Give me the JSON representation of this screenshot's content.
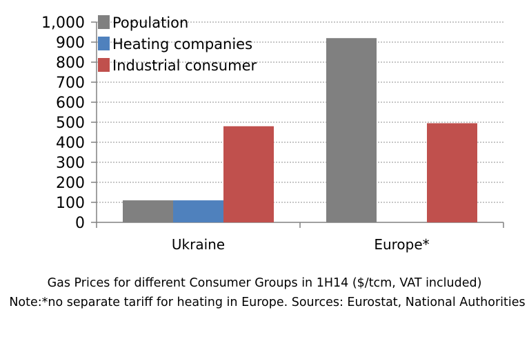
{
  "chart_data": {
    "type": "bar",
    "categories": [
      "Ukraine",
      "Europe*"
    ],
    "series": [
      {
        "name": "Population",
        "values": [
          110,
          920
        ],
        "color": "#808080"
      },
      {
        "name": "Heating companies",
        "values": [
          110,
          null
        ],
        "color": "#4f81bd"
      },
      {
        "name": "Industrial consumer",
        "values": [
          480,
          495
        ],
        "color": "#c0504d"
      }
    ],
    "ylim": [
      0,
      1000
    ],
    "yticks": [
      "0",
      "100",
      "200",
      "300",
      "400",
      "500",
      "600",
      "700",
      "800",
      "900",
      "1,000"
    ],
    "grid": true,
    "legend_position": "top-left"
  },
  "caption": {
    "line1": "Gas Prices for different Consumer Groups in 1H14 ($/tcm, VAT included)",
    "line2": "Note:*no separate tariff for heating in Europe. Sources: Eurostat, National Authorities"
  }
}
